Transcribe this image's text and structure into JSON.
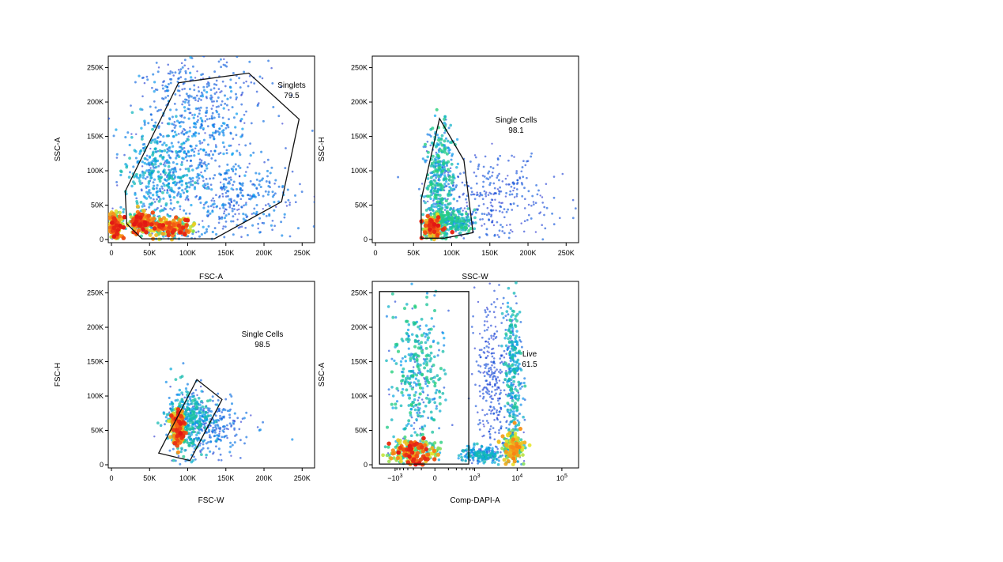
{
  "panels": [
    {
      "xlabel": "FSC-A",
      "ylabel": "SSC-A",
      "xscale": "linear",
      "xlim": [
        0,
        262144
      ],
      "ylim": [
        0,
        262144
      ],
      "xticks": [
        {
          "v": 0,
          "t": "0"
        },
        {
          "v": 50000,
          "t": "50K"
        },
        {
          "v": 100000,
          "t": "100K"
        },
        {
          "v": 150000,
          "t": "150K"
        },
        {
          "v": 200000,
          "t": "200K"
        },
        {
          "v": 250000,
          "t": "250K"
        }
      ],
      "yticks": [
        {
          "v": 0,
          "t": "0"
        },
        {
          "v": 50000,
          "t": "50K"
        },
        {
          "v": 100000,
          "t": "100K"
        },
        {
          "v": 150000,
          "t": "150K"
        },
        {
          "v": 200000,
          "t": "200K"
        },
        {
          "v": 250000,
          "t": "250K"
        }
      ],
      "gate": {
        "name": "Singlets",
        "percent": "79.5",
        "polygon": [
          [
            20000,
            23000
          ],
          [
            18000,
            70000
          ],
          [
            88000,
            228000
          ],
          [
            180000,
            242000
          ],
          [
            246000,
            175000
          ],
          [
            223000,
            55000
          ],
          [
            135000,
            1000
          ],
          [
            40000,
            1000
          ]
        ]
      }
    },
    {
      "xlabel": "SSC-W",
      "ylabel": "SSC-H",
      "xscale": "linear",
      "xlim": [
        0,
        262144
      ],
      "ylim": [
        0,
        262144
      ],
      "xticks": [
        {
          "v": 0,
          "t": "0"
        },
        {
          "v": 50000,
          "t": "50K"
        },
        {
          "v": 100000,
          "t": "100K"
        },
        {
          "v": 150000,
          "t": "150K"
        },
        {
          "v": 200000,
          "t": "200K"
        },
        {
          "v": 250000,
          "t": "250K"
        }
      ],
      "yticks": [
        {
          "v": 0,
          "t": "0"
        },
        {
          "v": 50000,
          "t": "50K"
        },
        {
          "v": 100000,
          "t": "100K"
        },
        {
          "v": 150000,
          "t": "150K"
        },
        {
          "v": 200000,
          "t": "200K"
        },
        {
          "v": 250000,
          "t": "250K"
        }
      ],
      "gate": {
        "name": "Single Cells",
        "percent": "98.1",
        "polygon": [
          [
            60000,
            2000
          ],
          [
            60000,
            58000
          ],
          [
            84000,
            176000
          ],
          [
            116000,
            115000
          ],
          [
            128000,
            10000
          ],
          [
            90000,
            2000
          ]
        ]
      }
    },
    {
      "xlabel": "FSC-W",
      "ylabel": "FSC-H",
      "xscale": "linear",
      "xlim": [
        0,
        262144
      ],
      "ylim": [
        0,
        262144
      ],
      "xticks": [
        {
          "v": 0,
          "t": "0"
        },
        {
          "v": 50000,
          "t": "50K"
        },
        {
          "v": 100000,
          "t": "100K"
        },
        {
          "v": 150000,
          "t": "150K"
        },
        {
          "v": 200000,
          "t": "200K"
        },
        {
          "v": 250000,
          "t": "250K"
        }
      ],
      "yticks": [
        {
          "v": 0,
          "t": "0"
        },
        {
          "v": 50000,
          "t": "50K"
        },
        {
          "v": 100000,
          "t": "100K"
        },
        {
          "v": 150000,
          "t": "150K"
        },
        {
          "v": 200000,
          "t": "200K"
        },
        {
          "v": 250000,
          "t": "250K"
        }
      ],
      "gate": {
        "name": "Single Cells",
        "percent": "98.5",
        "polygon": [
          [
            62000,
            17000
          ],
          [
            112000,
            124000
          ],
          [
            145000,
            95000
          ],
          [
            103000,
            6000
          ]
        ]
      }
    },
    {
      "xlabel": "Comp-DAPI-A",
      "ylabel": "SSC-A",
      "xscale": "biexponential",
      "xlim": [
        -3000,
        200000
      ],
      "ylim": [
        0,
        262144
      ],
      "xticks": [
        {
          "v": -1000,
          "t": "−10",
          "sup": "3"
        },
        {
          "v": 0,
          "t": "0"
        },
        {
          "v": 1000,
          "t": "10",
          "sup": "3"
        },
        {
          "v": 10000,
          "t": "10",
          "sup": "4"
        },
        {
          "v": 100000,
          "t": "10",
          "sup": "5"
        }
      ],
      "yticks": [
        {
          "v": 0,
          "t": "0"
        },
        {
          "v": 50000,
          "t": "50K"
        },
        {
          "v": 100000,
          "t": "100K"
        },
        {
          "v": 150000,
          "t": "150K"
        },
        {
          "v": 200000,
          "t": "200K"
        },
        {
          "v": 250000,
          "t": "250K"
        }
      ],
      "gate": {
        "name": "Live",
        "percent": "61.5",
        "polygon": [
          [
            -2400,
            1000
          ],
          [
            -2400,
            252000
          ],
          [
            700,
            252000
          ],
          [
            700,
            1000
          ]
        ]
      }
    }
  ],
  "chart_data": [
    {
      "type": "scatter",
      "title": "",
      "xlabel": "FSC-A",
      "ylabel": "SSC-A",
      "xlim": [
        0,
        262144
      ],
      "ylim": [
        0,
        262144
      ],
      "density_clusters": [
        {
          "x": 5000,
          "y": 20000,
          "sx": 4000,
          "sy": 9000,
          "w": 0.9,
          "hot": 1.0
        },
        {
          "x": 38000,
          "y": 25000,
          "sx": 8000,
          "sy": 7000,
          "w": 1.0,
          "hot": 1.0
        },
        {
          "x": 75000,
          "y": 18000,
          "sx": 15000,
          "sy": 6000,
          "w": 1.0,
          "hot": 1.0
        },
        {
          "x": 60000,
          "y": 90000,
          "sx": 22000,
          "sy": 38000,
          "w": 1.4,
          "hot": 0.45
        },
        {
          "x": 110000,
          "y": 120000,
          "sx": 35000,
          "sy": 55000,
          "w": 1.6,
          "hot": 0.3
        },
        {
          "x": 170000,
          "y": 60000,
          "sx": 40000,
          "sy": 30000,
          "w": 1.0,
          "hot": 0.25
        },
        {
          "x": 120000,
          "y": 210000,
          "sx": 45000,
          "sy": 30000,
          "w": 1.0,
          "hot": 0.2
        }
      ],
      "gates": [
        {
          "name": "Singlets",
          "percent": "79.5"
        }
      ]
    },
    {
      "type": "scatter",
      "title": "",
      "xlabel": "SSC-W",
      "ylabel": "SSC-H",
      "xlim": [
        0,
        262144
      ],
      "ylim": [
        0,
        262144
      ],
      "density_clusters": [
        {
          "x": 75000,
          "y": 18000,
          "sx": 6000,
          "sy": 8000,
          "w": 1.0,
          "hot": 1.0
        },
        {
          "x": 85000,
          "y": 90000,
          "sx": 9000,
          "sy": 40000,
          "w": 1.4,
          "hot": 0.55
        },
        {
          "x": 100000,
          "y": 25000,
          "sx": 15000,
          "sy": 9000,
          "w": 0.9,
          "hot": 0.55
        },
        {
          "x": 150000,
          "y": 60000,
          "sx": 40000,
          "sy": 35000,
          "w": 1.2,
          "hot": 0.15
        }
      ],
      "gates": [
        {
          "name": "Single Cells",
          "percent": "98.1"
        }
      ]
    },
    {
      "type": "scatter",
      "title": "",
      "xlabel": "FSC-W",
      "ylabel": "FSC-H",
      "xlim": [
        0,
        262144
      ],
      "ylim": [
        0,
        262144
      ],
      "density_clusters": [
        {
          "x": 87000,
          "y": 55000,
          "sx": 5000,
          "sy": 12000,
          "w": 1.0,
          "hot": 1.0
        },
        {
          "x": 100000,
          "y": 65000,
          "sx": 14000,
          "sy": 25000,
          "w": 1.4,
          "hot": 0.5
        },
        {
          "x": 130000,
          "y": 55000,
          "sx": 25000,
          "sy": 20000,
          "w": 1.0,
          "hot": 0.25
        }
      ],
      "gates": [
        {
          "name": "Single Cells",
          "percent": "98.5"
        }
      ]
    },
    {
      "type": "scatter",
      "title": "",
      "xlabel": "Comp-DAPI-A",
      "ylabel": "SSC-A",
      "xlim": [
        -3000,
        200000
      ],
      "ylim": [
        0,
        262144
      ],
      "x_axis_scale": "biexponential",
      "density_clusters": [
        {
          "x": -300,
          "y": 20000,
          "sx": 400,
          "sy": 9000,
          "w": 1.0,
          "hot": 1.0
        },
        {
          "x": -200,
          "y": 120000,
          "sx": 350,
          "sy": 60000,
          "w": 1.4,
          "hot": 0.55
        },
        {
          "x": 8000,
          "y": 25000,
          "sx": 2500,
          "sy": 10000,
          "w": 1.0,
          "hot": 0.9
        },
        {
          "x": 8000,
          "y": 130000,
          "sx": 2500,
          "sy": 60000,
          "w": 1.3,
          "hot": 0.5
        },
        {
          "x": 1500,
          "y": 15000,
          "sx": 1500,
          "sy": 6000,
          "w": 0.8,
          "hot": 0.45
        },
        {
          "x": 2500,
          "y": 120000,
          "sx": 1500,
          "sy": 60000,
          "w": 1.0,
          "hot": 0.12
        }
      ],
      "gates": [
        {
          "name": "Live",
          "percent": "61.5"
        }
      ]
    }
  ]
}
